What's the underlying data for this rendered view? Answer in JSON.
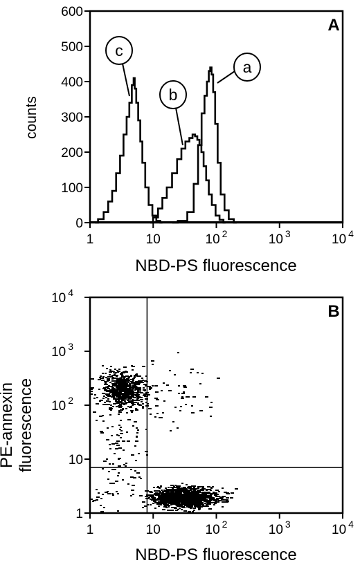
{
  "chart_data": [
    {
      "type": "line",
      "panel_label": "A",
      "xlabel": "NBD-PS fluorescence",
      "ylabel": "counts",
      "x_scale": "log",
      "xlim": [
        1,
        10000
      ],
      "ylim": [
        0,
        600
      ],
      "x_tick_labels": [
        {
          "value": 1,
          "base": "1",
          "exp": ""
        },
        {
          "value": 10,
          "base": "10",
          "exp": ""
        },
        {
          "value": 100,
          "base": "10",
          "exp": "2"
        },
        {
          "value": 1000,
          "base": "10",
          "exp": "3"
        },
        {
          "value": 10000,
          "base": "10",
          "exp": "4"
        }
      ],
      "y_ticks": [
        0,
        100,
        200,
        300,
        400,
        500,
        600
      ],
      "series": [
        {
          "label": "a",
          "x": [
            20,
            30,
            40,
            48,
            55,
            62,
            68,
            74,
            78,
            82,
            86,
            92,
            100,
            110,
            125,
            145,
            170,
            210
          ],
          "y": [
            0,
            5,
            30,
            110,
            220,
            310,
            360,
            400,
            430,
            440,
            420,
            370,
            280,
            170,
            80,
            35,
            10,
            0
          ]
        },
        {
          "label": "b",
          "x": [
            9,
            11,
            13,
            15,
            18,
            22,
            26,
            30,
            35,
            40,
            44,
            48,
            52,
            56,
            60,
            66,
            72,
            80,
            90,
            105,
            120,
            140
          ],
          "y": [
            0,
            15,
            40,
            70,
            100,
            140,
            180,
            210,
            230,
            240,
            250,
            245,
            235,
            220,
            200,
            160,
            120,
            80,
            50,
            20,
            8,
            0
          ]
        },
        {
          "label": "c",
          "x": [
            1.2,
            1.5,
            1.8,
            2.1,
            2.4,
            2.8,
            3.2,
            3.6,
            4.0,
            4.4,
            4.8,
            5.0,
            5.2,
            5.6,
            6.0,
            6.5,
            7.0,
            8.0,
            9.0,
            10.5,
            12.0,
            14.0
          ],
          "y": [
            0,
            10,
            30,
            60,
            90,
            140,
            190,
            250,
            300,
            340,
            390,
            410,
            380,
            340,
            290,
            230,
            170,
            100,
            50,
            20,
            5,
            0
          ]
        }
      ]
    },
    {
      "type": "scatter",
      "panel_label": "B",
      "xlabel": "NBD-PS fluorescence",
      "ylabel_lines": [
        "PE-annexin",
        "fluorescence"
      ],
      "x_scale": "log",
      "y_scale": "log",
      "xlim": [
        1,
        10000
      ],
      "ylim": [
        1,
        10000
      ],
      "x_tick_labels": [
        {
          "value": 1,
          "base": "1",
          "exp": ""
        },
        {
          "value": 10,
          "base": "10",
          "exp": ""
        },
        {
          "value": 100,
          "base": "10",
          "exp": "2"
        },
        {
          "value": 1000,
          "base": "10",
          "exp": "3"
        },
        {
          "value": 10000,
          "base": "10",
          "exp": "4"
        }
      ],
      "y_tick_labels": [
        {
          "value": 1,
          "base": "1",
          "exp": ""
        },
        {
          "value": 10,
          "base": "10",
          "exp": ""
        },
        {
          "value": 100,
          "base": "10",
          "exp": "2"
        },
        {
          "value": 1000,
          "base": "10",
          "exp": "3"
        },
        {
          "value": 10000,
          "base": "10",
          "exp": "4"
        }
      ],
      "quadrant_gate": {
        "x": 8,
        "y": 7
      },
      "populations": [
        {
          "x_center": 3.2,
          "y_center": 200,
          "x_log_sd": 0.17,
          "y_log_sd": 0.17,
          "count": 650
        },
        {
          "x_center": 30,
          "y_center": 2.0,
          "x_log_sd": 0.25,
          "y_log_sd": 0.09,
          "count": 1300
        },
        {
          "x_center": 3.0,
          "y_center": 20,
          "x_log_sd": 0.25,
          "y_log_sd": 0.45,
          "count": 90
        },
        {
          "x_center": 20,
          "y_center": 150,
          "x_log_sd": 0.35,
          "y_log_sd": 0.3,
          "count": 60
        },
        {
          "x_center": 1.5,
          "y_center": 2.2,
          "x_log_sd": 0.15,
          "y_log_sd": 0.2,
          "count": 20
        }
      ]
    }
  ]
}
